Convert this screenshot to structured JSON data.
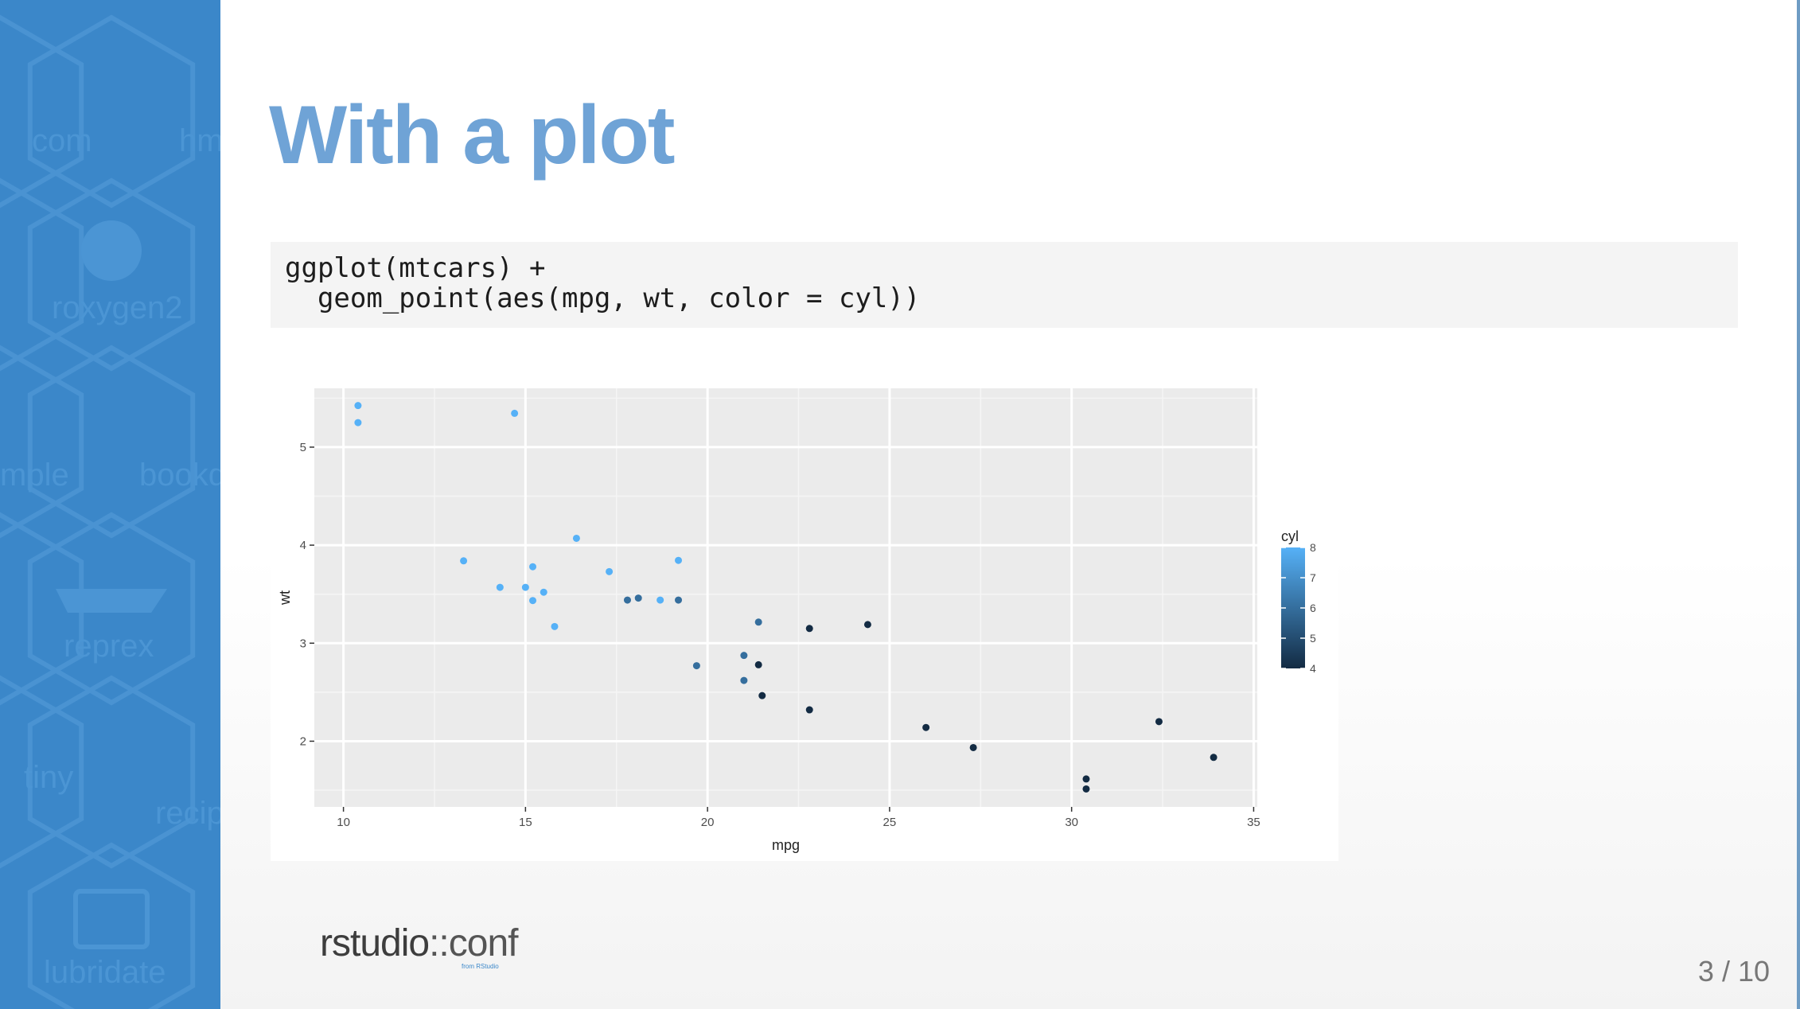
{
  "slide": {
    "title": "With a plot",
    "page_number": "3 / 10",
    "code_lines": [
      "ggplot(mtcars) +",
      "  geom_point(aes(mpg, wt, color = cyl))"
    ],
    "logo": {
      "main": "rstudio",
      "separator": "::",
      "suffix": "conf",
      "subtext": "from RStudio"
    }
  },
  "sidebar": {
    "background_labels": [
      "com",
      "hm",
      "roxygen2",
      "mple",
      "bookd",
      "reprex",
      "tiny",
      "recip",
      "lubridate"
    ]
  },
  "colors": {
    "sidebar": "#3b87c9",
    "title": "#6fa3d6",
    "code_background": "#f4f4f4",
    "panel_background": "#ebebeb",
    "cyl_low": "#132b43",
    "cyl_high": "#56b1f7"
  },
  "chart_data": {
    "type": "scatter",
    "xlabel": "mpg",
    "ylabel": "wt",
    "xlim": [
      9.2,
      35.1
    ],
    "ylim": [
      1.33,
      5.6
    ],
    "xticks": [
      10,
      15,
      20,
      25,
      30,
      35
    ],
    "yticks": [
      2,
      3,
      4,
      5
    ],
    "grid": true,
    "legend": {
      "title": "cyl",
      "position": "right",
      "type": "colorbar",
      "ticks": [
        4,
        5,
        6,
        7,
        8
      ]
    },
    "points": [
      {
        "x": 21.0,
        "y": 2.62,
        "cyl": 6
      },
      {
        "x": 21.0,
        "y": 2.875,
        "cyl": 6
      },
      {
        "x": 22.8,
        "y": 2.32,
        "cyl": 4
      },
      {
        "x": 21.4,
        "y": 3.215,
        "cyl": 6
      },
      {
        "x": 18.7,
        "y": 3.44,
        "cyl": 8
      },
      {
        "x": 18.1,
        "y": 3.46,
        "cyl": 6
      },
      {
        "x": 14.3,
        "y": 3.57,
        "cyl": 8
      },
      {
        "x": 24.4,
        "y": 3.19,
        "cyl": 4
      },
      {
        "x": 22.8,
        "y": 3.15,
        "cyl": 4
      },
      {
        "x": 19.2,
        "y": 3.44,
        "cyl": 6
      },
      {
        "x": 17.8,
        "y": 3.44,
        "cyl": 6
      },
      {
        "x": 16.4,
        "y": 4.07,
        "cyl": 8
      },
      {
        "x": 17.3,
        "y": 3.73,
        "cyl": 8
      },
      {
        "x": 15.2,
        "y": 3.78,
        "cyl": 8
      },
      {
        "x": 10.4,
        "y": 5.25,
        "cyl": 8
      },
      {
        "x": 10.4,
        "y": 5.424,
        "cyl": 8
      },
      {
        "x": 14.7,
        "y": 5.345,
        "cyl": 8
      },
      {
        "x": 32.4,
        "y": 2.2,
        "cyl": 4
      },
      {
        "x": 30.4,
        "y": 1.615,
        "cyl": 4
      },
      {
        "x": 33.9,
        "y": 1.835,
        "cyl": 4
      },
      {
        "x": 21.5,
        "y": 2.465,
        "cyl": 4
      },
      {
        "x": 15.5,
        "y": 3.52,
        "cyl": 8
      },
      {
        "x": 15.2,
        "y": 3.435,
        "cyl": 8
      },
      {
        "x": 13.3,
        "y": 3.84,
        "cyl": 8
      },
      {
        "x": 19.2,
        "y": 3.845,
        "cyl": 8
      },
      {
        "x": 27.3,
        "y": 1.935,
        "cyl": 4
      },
      {
        "x": 26.0,
        "y": 2.14,
        "cyl": 4
      },
      {
        "x": 30.4,
        "y": 1.513,
        "cyl": 4
      },
      {
        "x": 15.8,
        "y": 3.17,
        "cyl": 8
      },
      {
        "x": 19.7,
        "y": 2.77,
        "cyl": 6
      },
      {
        "x": 15.0,
        "y": 3.57,
        "cyl": 8
      },
      {
        "x": 21.4,
        "y": 2.78,
        "cyl": 4
      }
    ]
  }
}
